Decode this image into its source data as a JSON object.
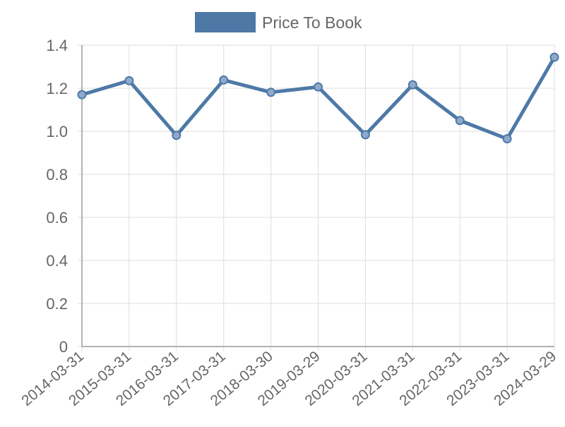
{
  "chart_data": {
    "type": "line",
    "categories": [
      "2014-03-31",
      "2015-03-31",
      "2016-03-31",
      "2017-03-31",
      "2018-03-30",
      "2019-03-29",
      "2020-03-31",
      "2021-03-31",
      "2022-03-31",
      "2023-03-31",
      "2024-03-29"
    ],
    "series": [
      {
        "name": "Price To Book",
        "color": "#4e79a7",
        "values": [
          1.17,
          1.235,
          0.981,
          1.238,
          1.181,
          1.206,
          0.984,
          1.216,
          1.05,
          0.965,
          1.344
        ]
      }
    ],
    "ylim": [
      0,
      1.4
    ],
    "yticks": [
      "0",
      "0.2",
      "0.4",
      "0.6",
      "0.8",
      "1.0",
      "1.2",
      "1.4"
    ],
    "grid": true,
    "legend": "top"
  }
}
